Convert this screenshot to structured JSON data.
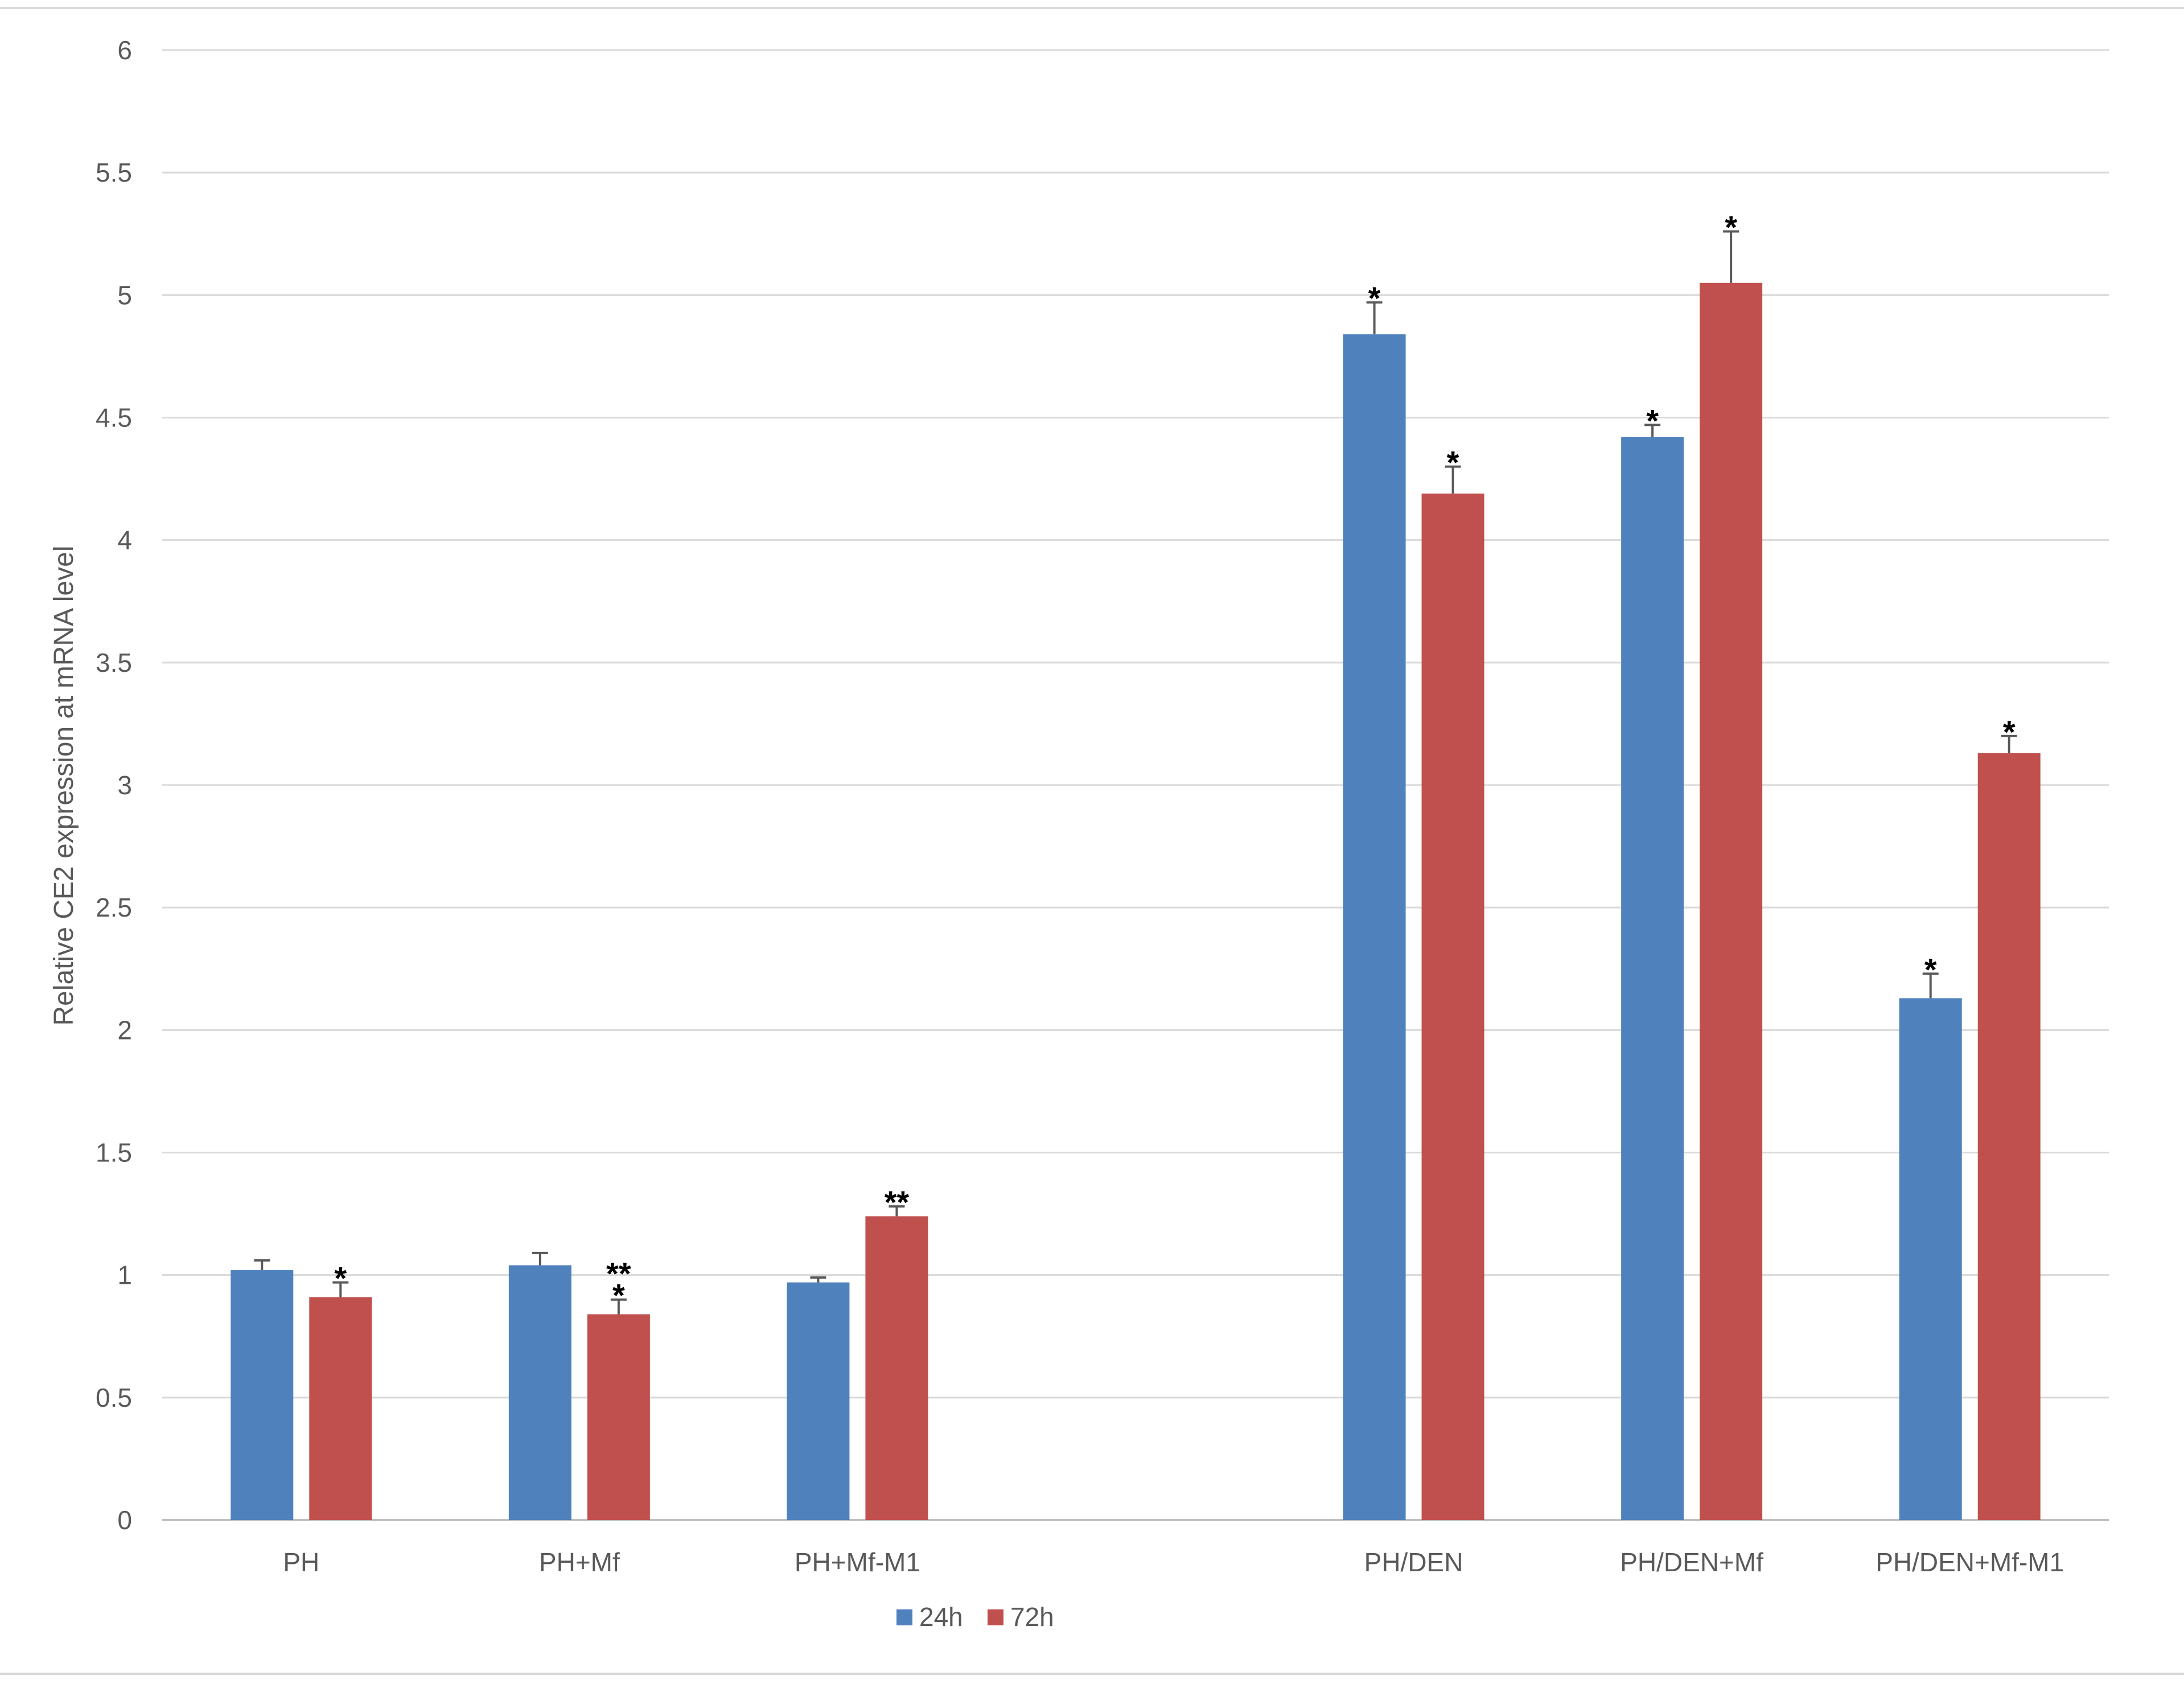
{
  "chart_data": {
    "type": "bar",
    "title": "",
    "xlabel": "",
    "ylabel": "Relative CE2 expression at mRNA level",
    "ylim": [
      0,
      6
    ],
    "yticks": [
      "0",
      "0.5",
      "1",
      "1.5",
      "2",
      "2.5",
      "3",
      "3.5",
      "4",
      "4.5",
      "5",
      "5.5",
      "6"
    ],
    "grid": true,
    "legend_position": "bottom",
    "categories": [
      "PH",
      "PH+Mf",
      "PH+Mf-M1",
      "",
      "PH/DEN",
      "PH/DEN+Mf",
      "PH/DEN+Mf-M1"
    ],
    "series": [
      {
        "name": "24h",
        "color": "#4F81BD",
        "values": [
          1.02,
          1.04,
          0.97,
          null,
          4.84,
          4.42,
          2.13
        ],
        "errors": [
          0.04,
          0.05,
          0.02,
          null,
          0.13,
          0.05,
          0.1
        ],
        "annotations": [
          "",
          "",
          "",
          "",
          "*",
          "*",
          "*"
        ]
      },
      {
        "name": "72h",
        "color": "#C0504D",
        "values": [
          0.91,
          0.84,
          1.24,
          null,
          4.19,
          5.05,
          3.13
        ],
        "errors": [
          0.06,
          0.06,
          0.04,
          null,
          0.11,
          0.21,
          0.07
        ],
        "annotations": [
          "*",
          "**\n*",
          "**",
          "",
          "*",
          "*",
          "*"
        ]
      }
    ]
  }
}
